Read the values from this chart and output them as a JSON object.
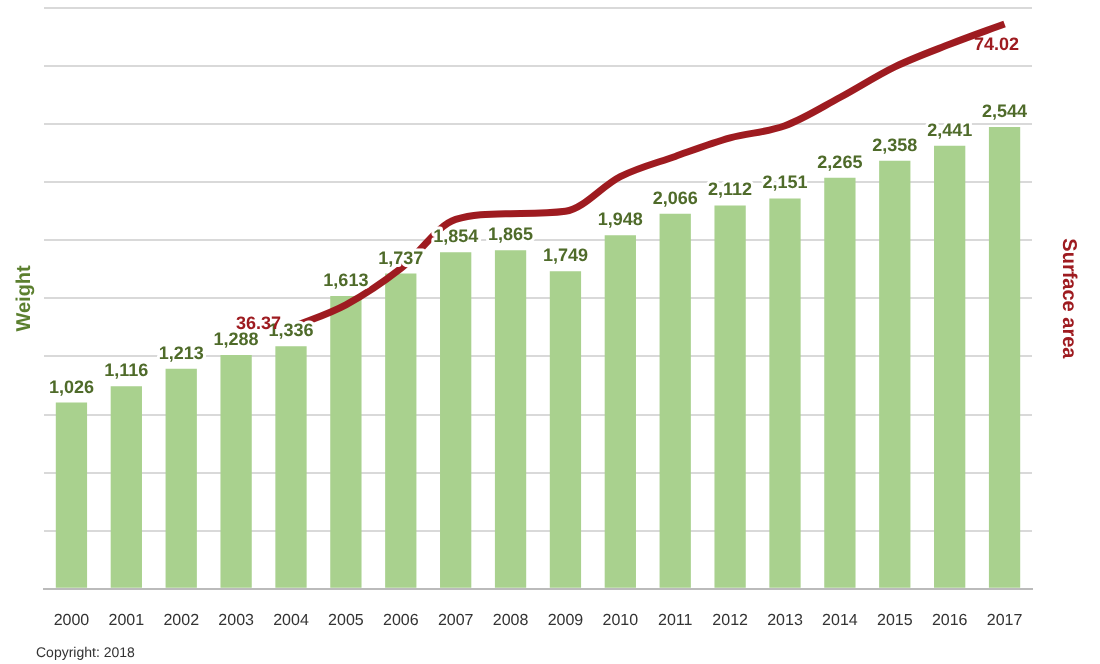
{
  "chart_data": {
    "type": "bar",
    "categories": [
      "2000",
      "2001",
      "2002",
      "2003",
      "2004",
      "2005",
      "2006",
      "2007",
      "2008",
      "2009",
      "2010",
      "2011",
      "2012",
      "2013",
      "2014",
      "2015",
      "2016",
      "2017"
    ],
    "ylabel": "Weight",
    "y2label": "Surface area",
    "series": [
      {
        "color": "#a9d18e",
        "values": [
          1026,
          1116,
          1213,
          1288,
          1336,
          1613,
          1737,
          1854,
          1865,
          1749,
          1948,
          2066,
          2112,
          2151,
          2265,
          2358,
          2441,
          2544
        ],
        "value_labels": [
          "1,026",
          "1,116",
          "1,213",
          "1,288",
          "1,336",
          "1,613",
          "1,737",
          "1,854",
          "1,865",
          "1,749",
          "1,948",
          "2,066",
          "2,112",
          "2,151",
          "2,265",
          "2,358",
          "2,441",
          "2,544"
        ]
      },
      {
        "type": "line",
        "axis": "y2",
        "color": "#9e1b20",
        "values": [
          null,
          null,
          null,
          null,
          36.37,
          39.2,
          43.7,
          49.8,
          50.5,
          50.8,
          55.1,
          57.6,
          59.9,
          61.4,
          64.9,
          68.7,
          71.5,
          74.02
        ],
        "value_labels": [
          null,
          null,
          null,
          null,
          "36.37",
          null,
          null,
          null,
          null,
          null,
          null,
          null,
          null,
          null,
          null,
          null,
          null,
          "74.02"
        ]
      }
    ],
    "ylim": [
      0,
      3200
    ],
    "yticks": [
      {
        "value": 0,
        "label": null
      },
      {
        "value": 320,
        "label": null
      },
      {
        "value": 640,
        "label": null
      },
      {
        "value": 960,
        "label": null
      },
      {
        "value": 1280,
        "label": null
      },
      {
        "value": 1600,
        "label": null
      },
      {
        "value": 1920,
        "label": null
      },
      {
        "value": 2240,
        "label": null
      },
      {
        "value": 2560,
        "label": null
      },
      {
        "value": 2880,
        "label": null
      },
      {
        "value": 3200,
        "label": null
      }
    ],
    "y2lim": [
      4,
      76
    ],
    "grid": "y",
    "legend": false,
    "marker": "none",
    "tick_labels": "x",
    "annotations": [
      "Copyright: 2018"
    ]
  }
}
